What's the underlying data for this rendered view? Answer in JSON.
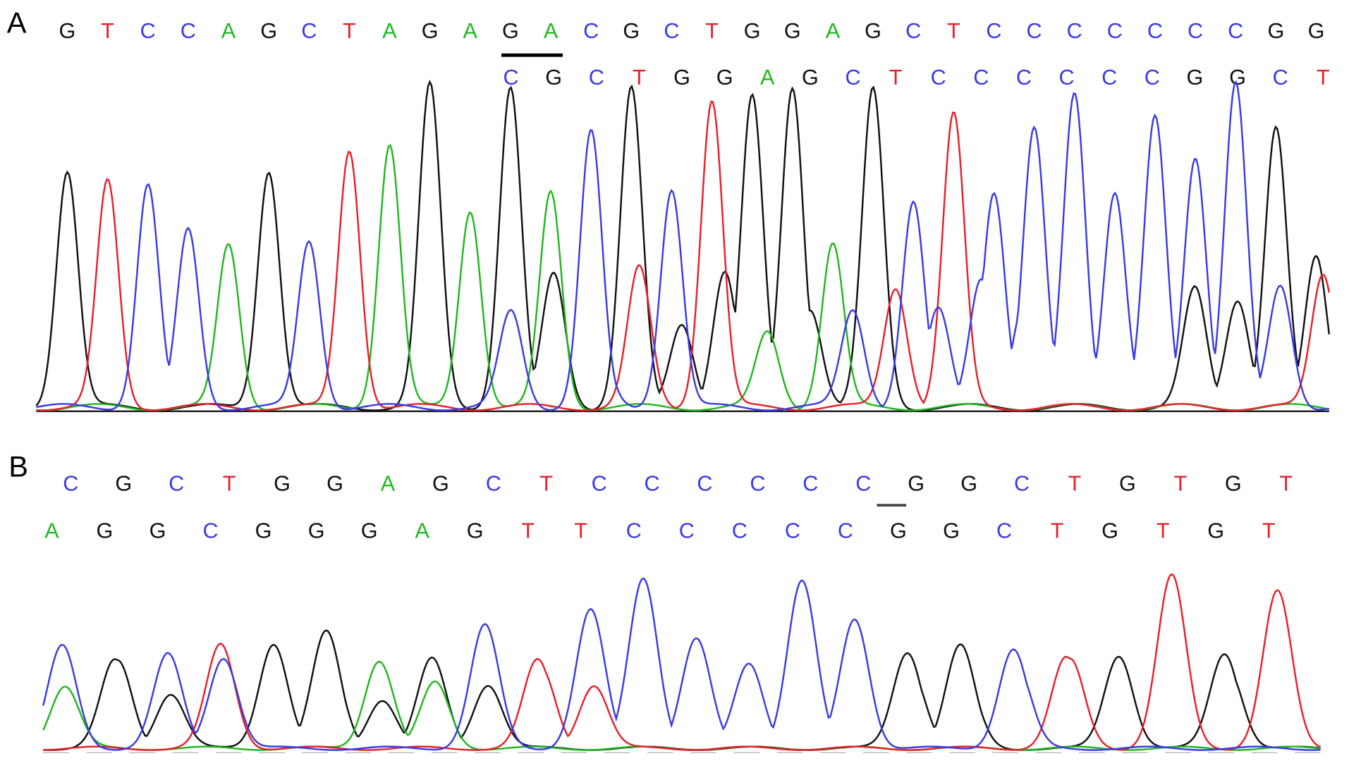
{
  "panels": [
    {
      "label": "A",
      "rows": [
        [
          "G",
          "T",
          "C",
          "C",
          "A",
          "G",
          "C",
          "T",
          "A",
          "G",
          "A",
          "G",
          "A",
          "C",
          "G",
          "C",
          "T",
          "G",
          "G",
          "A",
          "G",
          "C",
          "T",
          "C",
          "C",
          "C",
          "C",
          "C",
          "C",
          "C",
          "G",
          "G"
        ],
        [
          "C",
          "G",
          "C",
          "T",
          "G",
          "G",
          "A",
          "G",
          "C",
          "T",
          "C",
          "C",
          "C",
          "C",
          "C",
          "C",
          "G",
          "G",
          "C",
          "T"
        ]
      ]
    },
    {
      "label": "B",
      "rows": [
        [
          "C",
          "G",
          "C",
          "T",
          "G",
          "G",
          "A",
          "G",
          "C",
          "T",
          "C",
          "C",
          "C",
          "C",
          "C",
          "C",
          "G",
          "G",
          "C",
          "T",
          "G",
          "T",
          "G",
          "T"
        ],
        [
          "A",
          "G",
          "G",
          "C",
          "G",
          "G",
          "G",
          "A",
          "G",
          "T",
          "T",
          "C",
          "C",
          "C",
          "C",
          "C",
          "G",
          "G",
          "C",
          "T",
          "G",
          "T",
          "G",
          "T"
        ]
      ]
    }
  ]
}
